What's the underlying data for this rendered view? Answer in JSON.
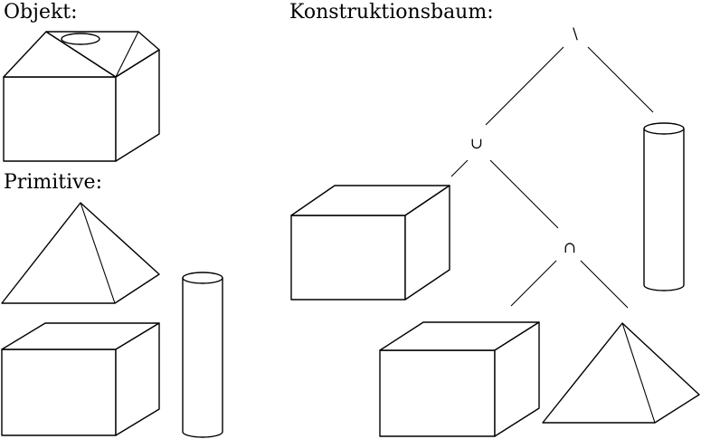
{
  "labels": {
    "object": "Objekt:",
    "primitives": "Primitive:",
    "tree": "Konstruktionsbaum:"
  },
  "tree_ops": {
    "root": "\\",
    "union": "∪",
    "intersection": "∩"
  }
}
